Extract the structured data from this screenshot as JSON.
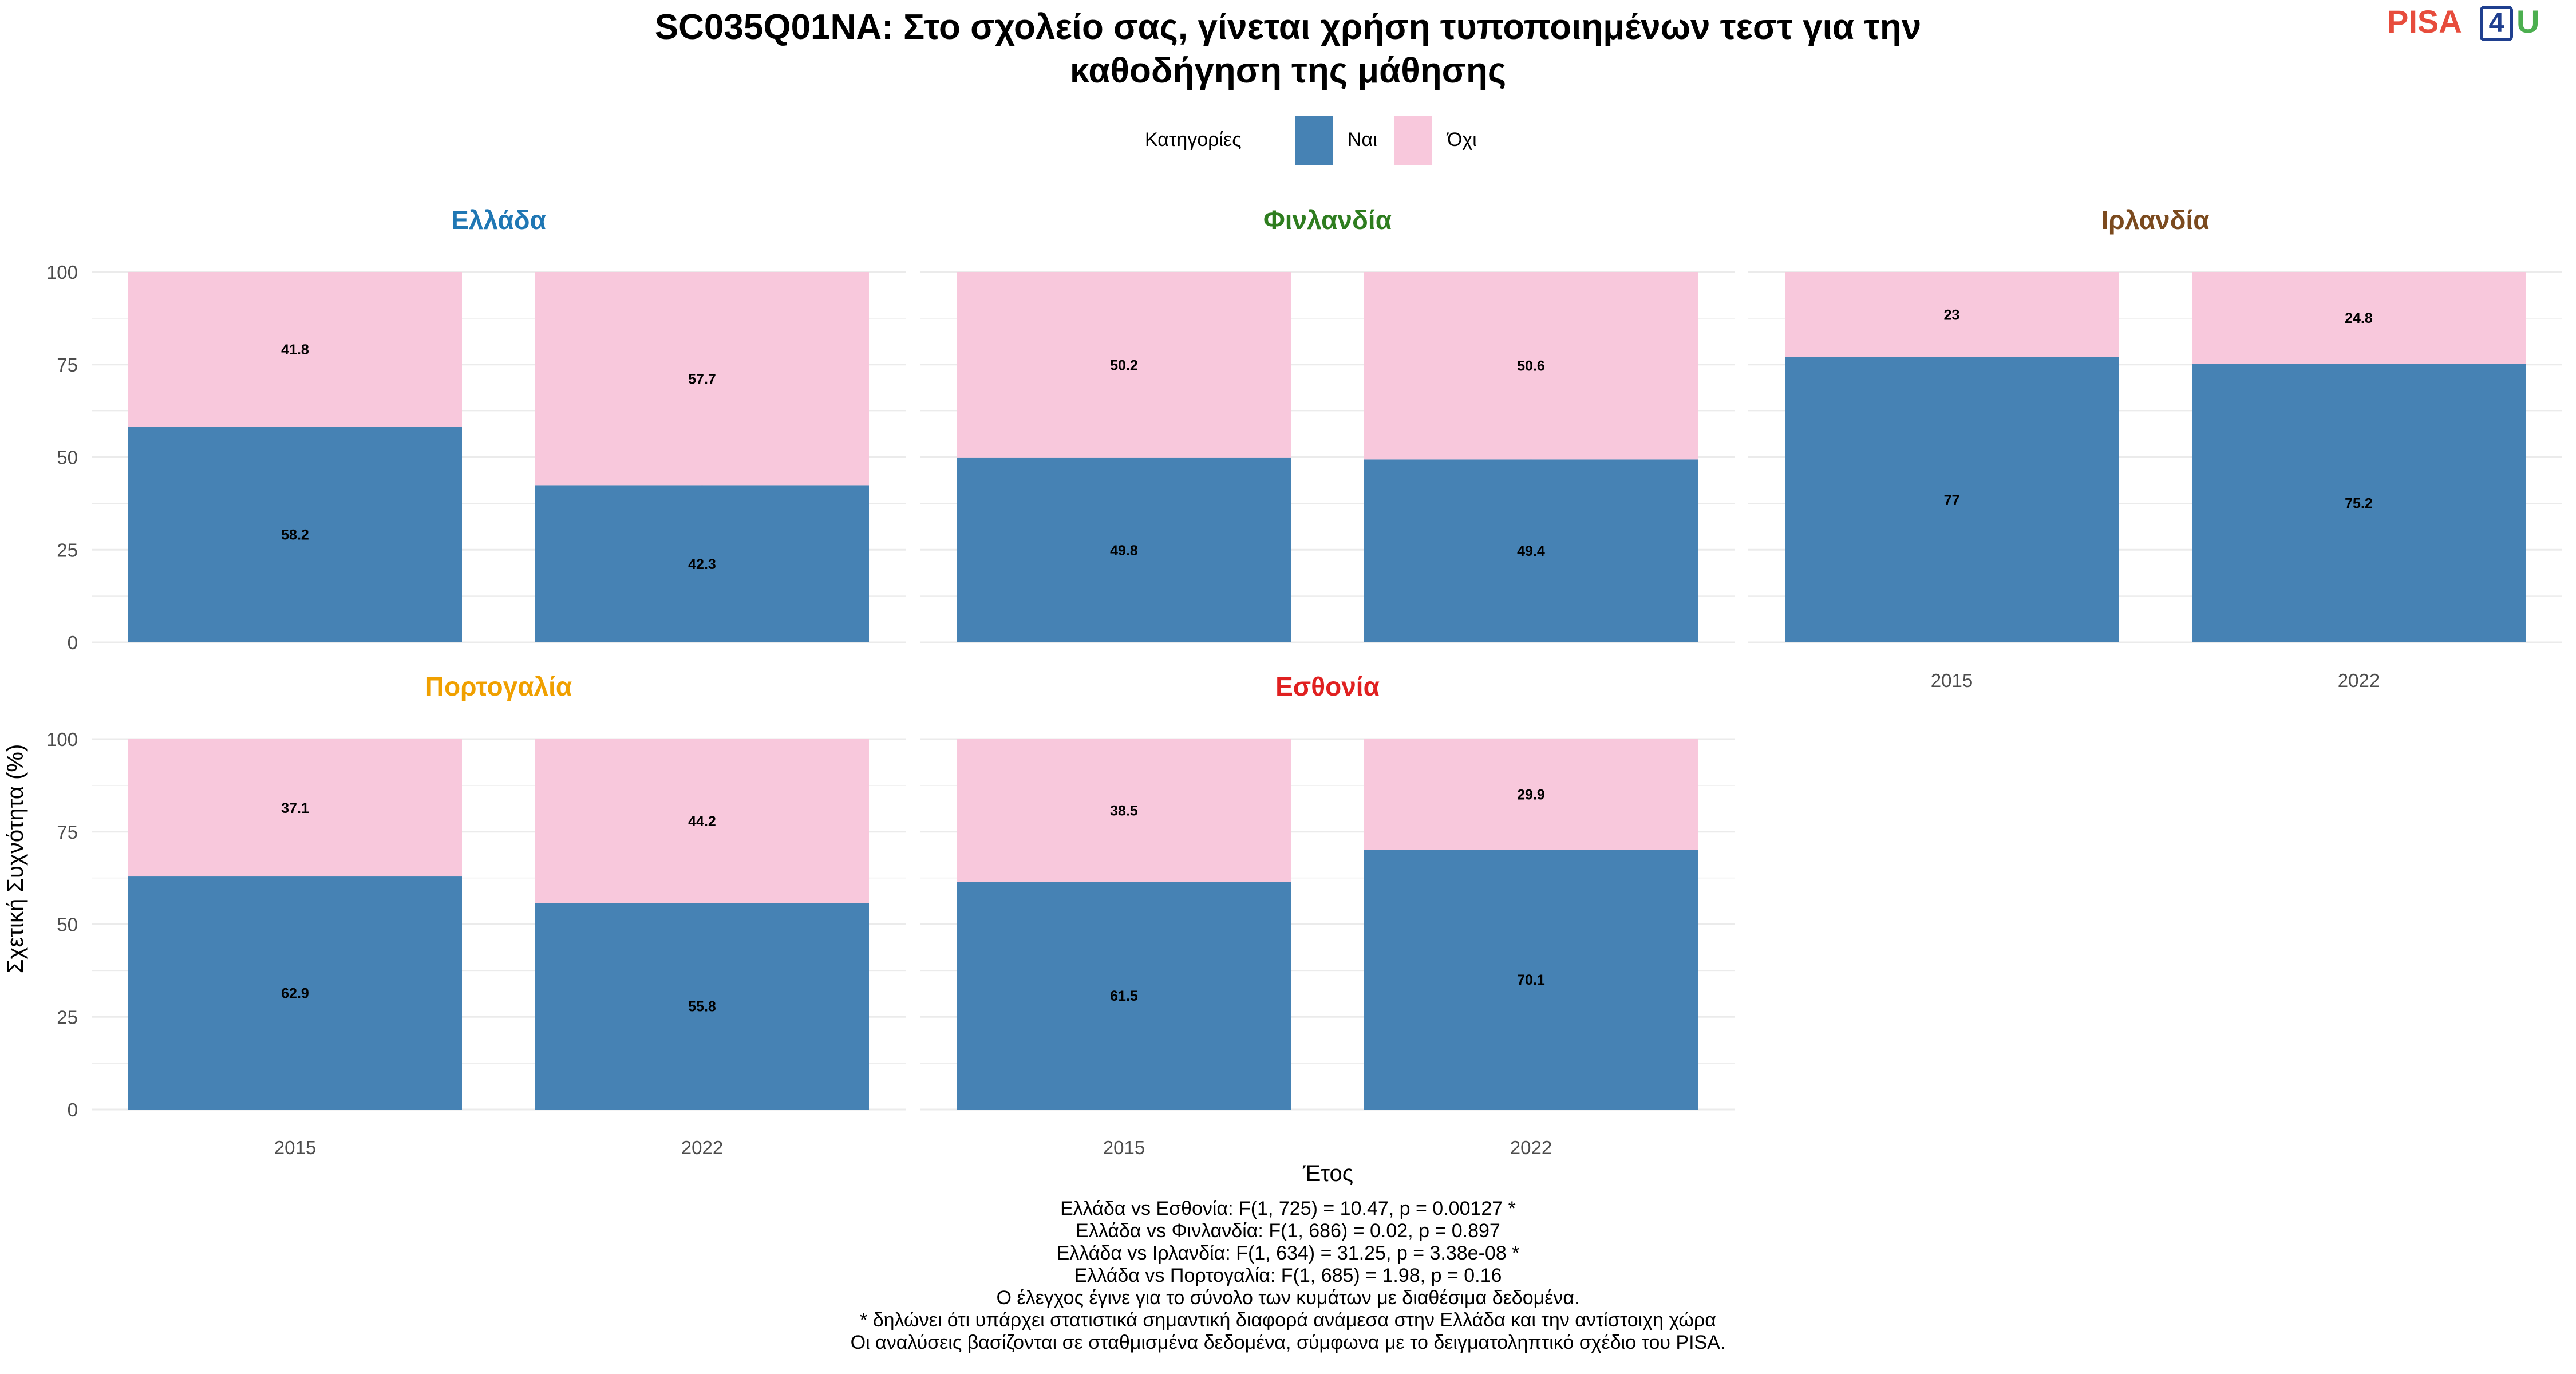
{
  "title_lines": [
    "SC035Q01NA: Στο σχολείο σας, γίνεται χρήση τυποποιημένων τεστ για την",
    "καθοδήγηση της μάθησης"
  ],
  "logo": {
    "pisa": "PISA",
    "number": "4",
    "u": "U"
  },
  "legend": {
    "title": "Κατηγορίες",
    "items": [
      {
        "label": "Ναι",
        "color": "#4682b4"
      },
      {
        "label": "Όχι",
        "color": "#f8c8dc"
      }
    ]
  },
  "chart_data": {
    "type": "bar",
    "stacked": true,
    "xlabel": "Έτος",
    "ylabel": "Σχετική Συχνότητα (%)",
    "ylim": [
      0,
      100
    ],
    "yticks": [
      0,
      25,
      50,
      75,
      100
    ],
    "categories": [
      "2015",
      "2022"
    ],
    "grid": true,
    "legend_position": "top",
    "panels": [
      {
        "name": "Ελλάδα",
        "color": "#1f77b4",
        "series": [
          {
            "name": "Ναι",
            "values": [
              58.2,
              42.3
            ]
          },
          {
            "name": "Όχι",
            "values": [
              41.8,
              57.7
            ]
          }
        ]
      },
      {
        "name": "Φινλανδία",
        "color": "#2e7d1f",
        "series": [
          {
            "name": "Ναι",
            "values": [
              49.8,
              49.4
            ]
          },
          {
            "name": "Όχι",
            "values": [
              50.2,
              50.6
            ]
          }
        ]
      },
      {
        "name": "Ιρλανδία",
        "color": "#7b4a1e",
        "series": [
          {
            "name": "Ναι",
            "values": [
              77,
              75.2
            ]
          },
          {
            "name": "Όχι",
            "values": [
              23,
              24.8
            ]
          }
        ]
      },
      {
        "name": "Πορτογαλία",
        "color": "#f0a000",
        "series": [
          {
            "name": "Ναι",
            "values": [
              62.9,
              55.8
            ]
          },
          {
            "name": "Όχι",
            "values": [
              37.1,
              44.2
            ]
          }
        ]
      },
      {
        "name": "Εσθονία",
        "color": "#e02020",
        "series": [
          {
            "name": "Ναι",
            "values": [
              61.5,
              70.1
            ]
          },
          {
            "name": "Όχι",
            "values": [
              38.5,
              29.9
            ]
          }
        ]
      }
    ]
  },
  "notes": [
    "Ελλάδα vs Εσθονία: F(1, 725) = 10.47, p = 0.00127 *",
    "Ελλάδα vs Φινλανδία: F(1, 686) = 0.02, p = 0.897",
    "Ελλάδα vs Ιρλανδία: F(1, 634) = 31.25, p = 3.38e-08 *",
    "Ελλάδα vs Πορτογαλία: F(1, 685) = 1.98, p = 0.16",
    "Ο έλεγχος έγινε για το σύνολο των κυμάτων με διαθέσιμα δεδομένα.",
    "* δηλώνει ότι υπάρχει στατιστικά σημαντική διαφορά ανάμεσα στην Ελλάδα και την αντίστοιχη χώρα",
    "Οι αναλύσεις βασίζονται σε σταθμισμένα δεδομένα, σύμφωνα με το δειγματοληπτικό σχέδιο του PISA."
  ]
}
